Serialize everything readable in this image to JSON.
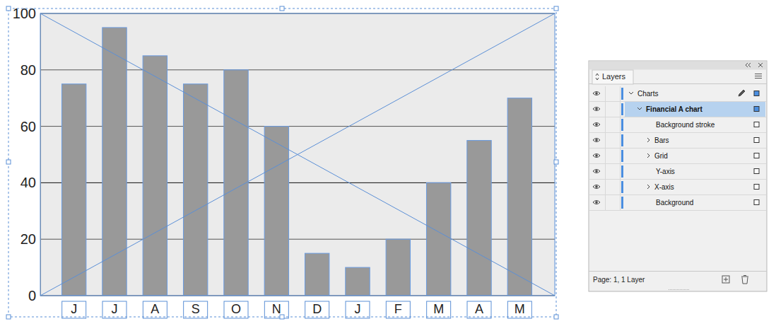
{
  "chart_data": {
    "type": "bar",
    "categories": [
      "J",
      "J",
      "A",
      "S",
      "O",
      "N",
      "D",
      "J",
      "F",
      "M",
      "A",
      "M"
    ],
    "values": [
      75,
      95,
      85,
      75,
      80,
      60,
      15,
      10,
      20,
      40,
      55,
      70
    ],
    "color": "#999999",
    "ylim": [
      0,
      100
    ],
    "yticks": [
      0,
      20,
      40,
      60,
      80,
      100
    ],
    "grid": true
  },
  "layers_panel": {
    "title": "Layers",
    "layers": [
      {
        "name": "Charts",
        "expanded": true,
        "children": [
          {
            "name": "Financial A chart",
            "expanded": true,
            "selected": true,
            "children": [
              {
                "name": "Background stroke"
              },
              {
                "name": "Bars",
                "expanded": false
              },
              {
                "name": "Grid",
                "expanded": false
              },
              {
                "name": "Y-axis"
              },
              {
                "name": "X-axis",
                "expanded": false
              },
              {
                "name": "Background"
              }
            ]
          }
        ]
      }
    ],
    "footer": "Page: 1, 1 Layer"
  }
}
